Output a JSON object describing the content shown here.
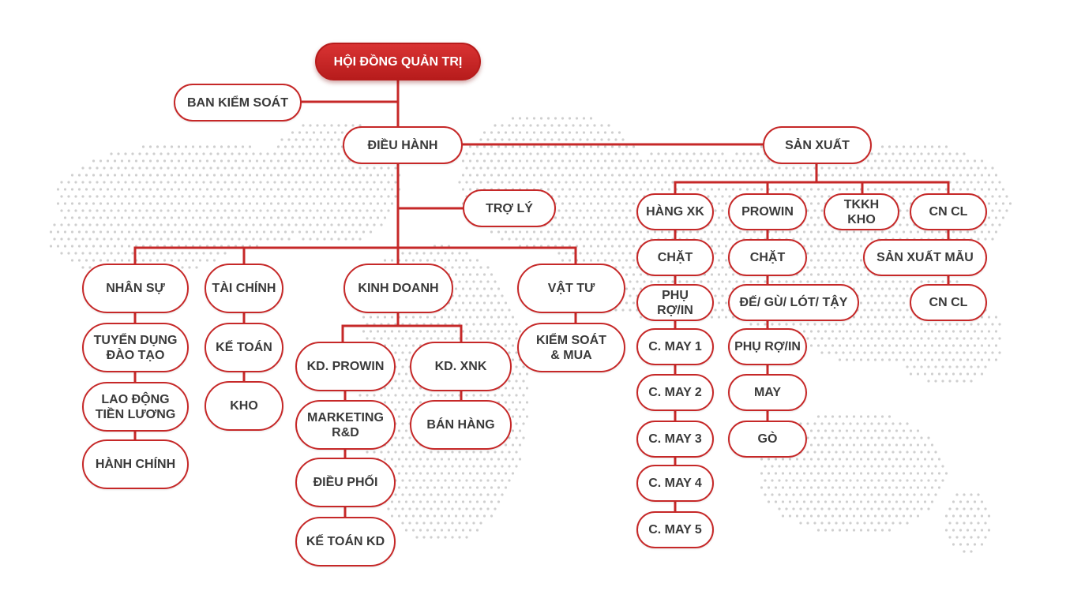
{
  "colors": {
    "accent": "#c62828",
    "root_fill": "#c62828",
    "text": "#3a3a3a",
    "map_dots": "#cfcfcf"
  },
  "nodes": {
    "hoi_dong_quan_tri": "HỘI ĐỒNG QUẢN TRỊ",
    "ban_kiem_soat": "BAN KIỂM SOÁT",
    "dieu_hanh": "ĐIỀU HÀNH",
    "san_xuat": "SẢN XUẤT",
    "tro_ly": "TRỢ LÝ",
    "nhan_su": "NHÂN SỰ",
    "tuyen_dung": "TUYỂN DỤNG\nĐÀO TẠO",
    "lao_dong": "LAO ĐỘNG\nTIỀN LƯƠNG",
    "hanh_chinh": "HÀNH CHÍNH",
    "tai_chinh": "TÀI CHÍNH",
    "ke_toan": "KẾ TOÁN",
    "kho": "KHO",
    "kinh_doanh": "KINH DOANH",
    "kd_prowin": "KD. PROWIN",
    "marketing": "MARKETING\nR&D",
    "dieu_phoi": "ĐIỀU PHỐI",
    "ke_toan_kd": "KẾ TOÁN KD",
    "kd_xnk": "KD. XNK",
    "ban_hang": "BÁN HÀNG",
    "vat_tu": "VẬT TƯ",
    "kiem_soat_mua": "KIỂM SOÁT\n& MUA",
    "hang_xk": "HÀNG XK",
    "chat_1": "CHẶT",
    "phu_ro_in_1": "PHỤ RỢ/IN",
    "c_may_1": "C. MAY 1",
    "c_may_2": "C. MAY 2",
    "c_may_3": "C. MAY 3",
    "c_may_4": "C. MAY 4",
    "c_may_5": "C. MAY 5",
    "prowin": "PROWIN",
    "chat_2": "CHẶT",
    "de_gu_lot_tay": "ĐẾ/ GÙ/ LÓT/ TẬY",
    "phu_ro_in_2": "PHỤ RỢ/IN",
    "may": "MAY",
    "go": "GÒ",
    "tkkh_kho": "TKKH KHO",
    "cn_cl_1": "CN CL",
    "san_xuat_mau": "SẢN XUẤT MẪU",
    "cn_cl_2": "CN CL"
  }
}
